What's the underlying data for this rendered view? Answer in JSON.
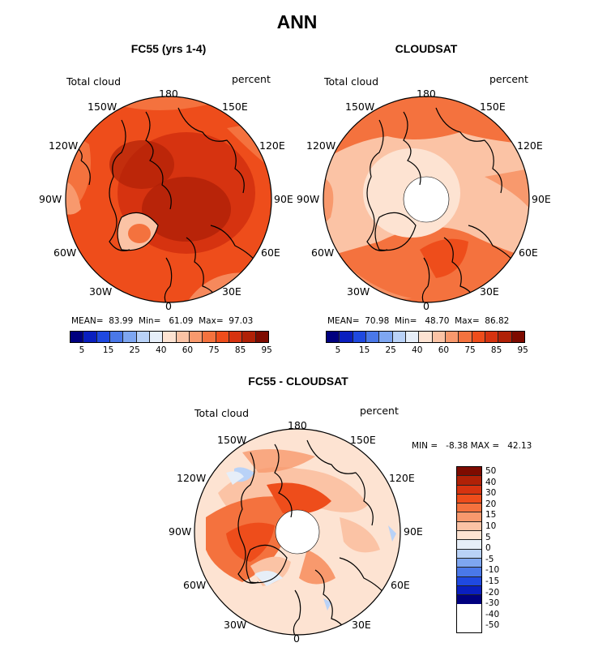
{
  "title": "ANN",
  "panels": [
    {
      "id": "model",
      "title": "FC55 (yrs 1-4)",
      "left_label": "Total cloud",
      "right_label": "percent",
      "stats": "MEAN=  83.99  Min=   61.09  Max=  97.03",
      "colorbar_labels": [
        "5",
        "15",
        "25",
        "40",
        "60",
        "75",
        "85",
        "95"
      ]
    },
    {
      "id": "obs",
      "title": "CLOUDSAT",
      "left_label": "Total cloud",
      "right_label": "percent",
      "stats": "MEAN=  70.98  Min=   48.70  Max=  86.82",
      "colorbar_labels": [
        "5",
        "15",
        "25",
        "40",
        "60",
        "75",
        "85",
        "95"
      ]
    },
    {
      "id": "diff",
      "title": "FC55 - CLOUDSAT",
      "left_label": "Total cloud",
      "right_label": "percent",
      "stats": "MIN =   -8.38 MAX =   42.13",
      "colorbar_labels": [
        "50",
        "40",
        "30",
        "20",
        "15",
        "10",
        "5",
        "0",
        "-5",
        "-10",
        "-15",
        "-20",
        "-30",
        "-40",
        "-50"
      ]
    }
  ],
  "longitude_labels": {
    "top": "180",
    "bottom": "0",
    "w150": "150W",
    "e150": "150E",
    "w120": "120W",
    "e120": "120E",
    "w90": "90W",
    "e90": "90E",
    "w60": "60W",
    "e60": "60E",
    "w30": "30W",
    "e30": "30E"
  },
  "colors": {
    "abs_scale": [
      "#00007f",
      "#0a1fbf",
      "#1f49e0",
      "#4a78e8",
      "#7ea6f0",
      "#b9d2f7",
      "#e6eef8",
      "#fde3d2",
      "#fbc3a5",
      "#f8996d",
      "#f4723e",
      "#ee4d1b",
      "#d63310",
      "#b02107",
      "#7e0b00"
    ],
    "diff_scale": [
      "#7e0b00",
      "#b02107",
      "#d63310",
      "#ee4d1b",
      "#f4723e",
      "#f8996d",
      "#fbc3a5",
      "#fde3d2",
      "#e6eef8",
      "#b9d2f7",
      "#7ea6f0",
      "#4a78e8",
      "#1f49e0",
      "#0a1fbf",
      "#00007f"
    ]
  }
}
